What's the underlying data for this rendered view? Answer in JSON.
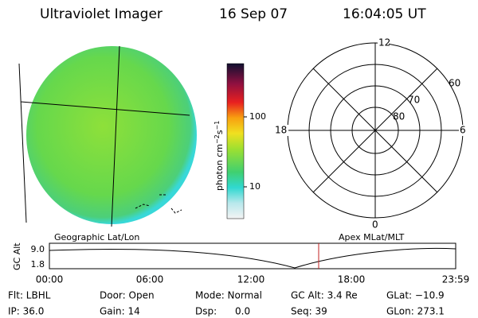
{
  "header": {
    "title": "Ultraviolet Imager",
    "date": "16 Sep 07",
    "time": "16:04:05 UT"
  },
  "colorbar": {
    "label": [
      "photon cm",
      "−2",
      "s",
      "−1"
    ],
    "ticks": [
      "100",
      "10"
    ]
  },
  "polar": {
    "mlt_labels": [
      "12",
      "18",
      "6",
      "0"
    ],
    "lat_labels": [
      "60",
      "70",
      "80"
    ]
  },
  "timeline": {
    "left_title": "Geographic Lat/Lon",
    "right_title": "Apex MLat/MLT",
    "y_label": "GC Alt",
    "y_ticks": [
      "9.0",
      "1.8"
    ],
    "x_ticks": [
      "00:00",
      "06:00",
      "12:00",
      "18:00",
      "23:59"
    ]
  },
  "status": {
    "rows": [
      [
        "Flt: LBHL",
        "Door: Open",
        "Mode: Normal",
        "GC Alt: 3.4 Re",
        "GLat: −10.9"
      ],
      [
        "IP: 36.0",
        "Gain: 14",
        "Dsp:      0.0",
        "Seq: 39",
        "GLon: 273.1"
      ]
    ]
  }
}
